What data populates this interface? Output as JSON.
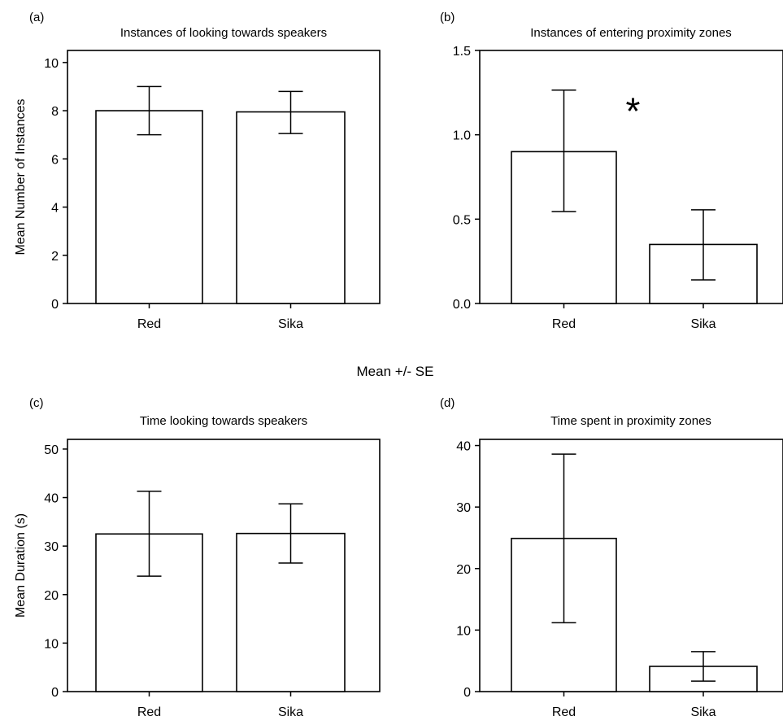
{
  "figure": {
    "shared_label": "Mean +/- SE"
  },
  "chart_data": [
    {
      "type": "bar",
      "panel_label": "(a)",
      "title": "Instances of looking towards speakers",
      "ylabel": "Mean Number of Instances",
      "xlabel": "",
      "categories": [
        "Red",
        "Sika"
      ],
      "values": [
        8.0,
        7.95
      ],
      "error_low": [
        7.0,
        7.05
      ],
      "error_high": [
        9.0,
        8.8
      ],
      "ylim": [
        0,
        10.5
      ],
      "yticks": [
        0,
        2,
        4,
        6,
        8,
        10
      ],
      "ytick_labels": [
        "0",
        "2",
        "4",
        "6",
        "8",
        "10"
      ],
      "grid": false,
      "annotations": []
    },
    {
      "type": "bar",
      "panel_label": "(b)",
      "title": "Instances of entering proximity zones",
      "ylabel": "",
      "xlabel": "",
      "categories": [
        "Red",
        "Sika"
      ],
      "values": [
        0.9,
        0.35
      ],
      "error_low": [
        0.545,
        0.14
      ],
      "error_high": [
        1.265,
        0.555
      ],
      "ylim": [
        0,
        1.5
      ],
      "yticks": [
        0,
        0.5,
        1.0,
        1.5
      ],
      "ytick_labels": [
        "0.0",
        "0.5",
        "1.0",
        "1.5"
      ],
      "grid": false,
      "annotations": [
        {
          "text": "*",
          "x": 0.5,
          "y": 1.18
        }
      ]
    },
    {
      "type": "bar",
      "panel_label": "(c)",
      "title": "Time looking towards speakers",
      "ylabel": "Mean Duration (s)",
      "xlabel": "",
      "categories": [
        "Red",
        "Sika"
      ],
      "values": [
        32.5,
        32.6
      ],
      "error_low": [
        23.8,
        26.5
      ],
      "error_high": [
        41.3,
        38.7
      ],
      "ylim": [
        0,
        52
      ],
      "yticks": [
        0,
        10,
        20,
        30,
        40,
        50
      ],
      "ytick_labels": [
        "0",
        "10",
        "20",
        "30",
        "40",
        "50"
      ],
      "grid": false,
      "annotations": []
    },
    {
      "type": "bar",
      "panel_label": "(d)",
      "title": "Time spent in proximity zones",
      "ylabel": "",
      "xlabel": "",
      "categories": [
        "Red",
        "Sika"
      ],
      "values": [
        24.9,
        4.1
      ],
      "error_low": [
        11.2,
        1.7
      ],
      "error_high": [
        38.6,
        6.5
      ],
      "ylim": [
        0,
        41
      ],
      "yticks": [
        0,
        10,
        20,
        30,
        40
      ],
      "ytick_labels": [
        "0",
        "10",
        "20",
        "30",
        "40"
      ],
      "grid": false,
      "annotations": []
    }
  ]
}
